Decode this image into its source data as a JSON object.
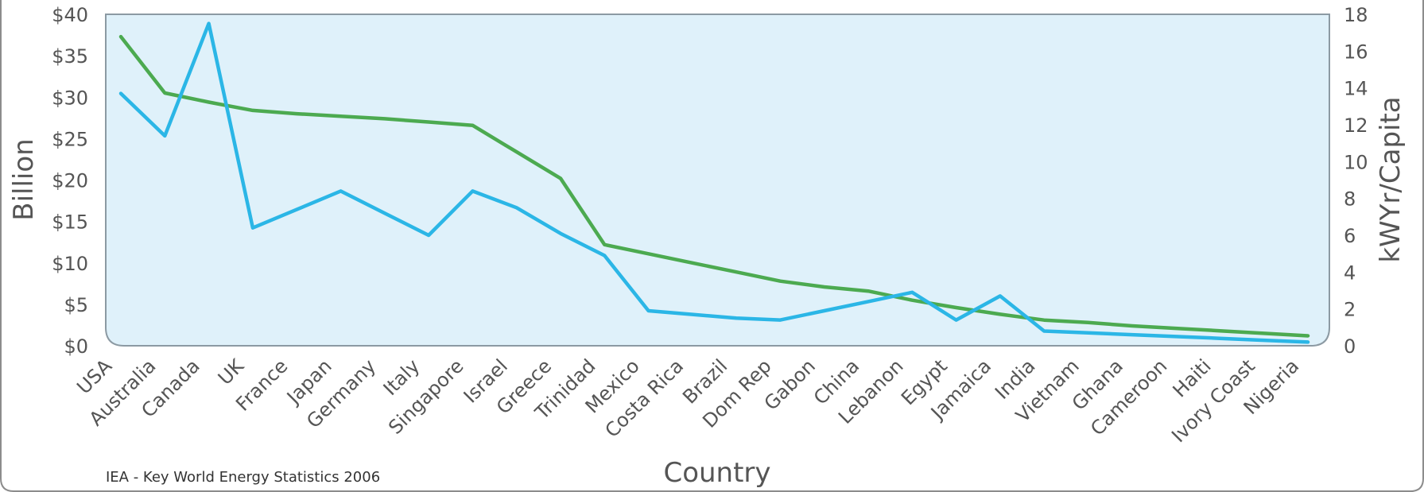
{
  "chart_data": {
    "type": "line",
    "title": "",
    "xlabel": "Country",
    "ylabel": "Billion",
    "y2label": "kWYr/Capita",
    "source_note": "IEA - Key World Energy Statistics 2006",
    "categories": [
      "USA",
      "Australia",
      "Canada",
      "UK",
      "France",
      "Japan",
      "Germany",
      "Italy",
      "Singapore",
      "Israel",
      "Greece",
      "Trinidad",
      "Mexico",
      "Costa Rica",
      "Brazil",
      "Dom Rep",
      "Gabon",
      "China",
      "Lebanon",
      "Egypt",
      "Jamaica",
      "India",
      "Vietnam",
      "Ghana",
      "Cameroon",
      "Haiti",
      "Ivory Coast",
      "Nigeria"
    ],
    "y_axis": {
      "min": 0,
      "max": 40,
      "step": 5,
      "tick_labels": [
        "$0",
        "$5",
        "$10",
        "$15",
        "$20",
        "$25",
        "$30",
        "$35",
        "$40"
      ]
    },
    "y2_axis": {
      "min": 0,
      "max": 18,
      "step": 2,
      "tick_labels": [
        "0",
        "2",
        "4",
        "6",
        "8",
        "10",
        "12",
        "14",
        "16",
        "18"
      ]
    },
    "series": [
      {
        "axis": "left",
        "color": "#4caa50",
        "values": [
          37.3,
          30.5,
          29.4,
          28.4,
          28.0,
          27.7,
          27.4,
          27.0,
          26.6,
          23.4,
          20.2,
          12.2,
          11.1,
          10.0,
          8.9,
          7.8,
          7.1,
          6.6,
          5.5,
          4.6,
          3.8,
          3.1,
          2.8,
          2.4,
          2.1,
          1.8,
          1.5,
          1.2
        ]
      },
      {
        "axis": "right",
        "color": "#2bb6e6",
        "values": [
          13.7,
          11.4,
          17.5,
          6.4,
          7.4,
          8.4,
          7.2,
          6.0,
          8.4,
          7.5,
          6.1,
          4.9,
          1.9,
          1.7,
          1.5,
          1.4,
          1.9,
          2.4,
          2.9,
          1.4,
          2.7,
          0.8,
          0.7,
          0.6,
          0.5,
          0.4,
          0.3,
          0.2
        ]
      }
    ],
    "grid": false,
    "legend": "none",
    "plot_background": "#dff1fa"
  }
}
